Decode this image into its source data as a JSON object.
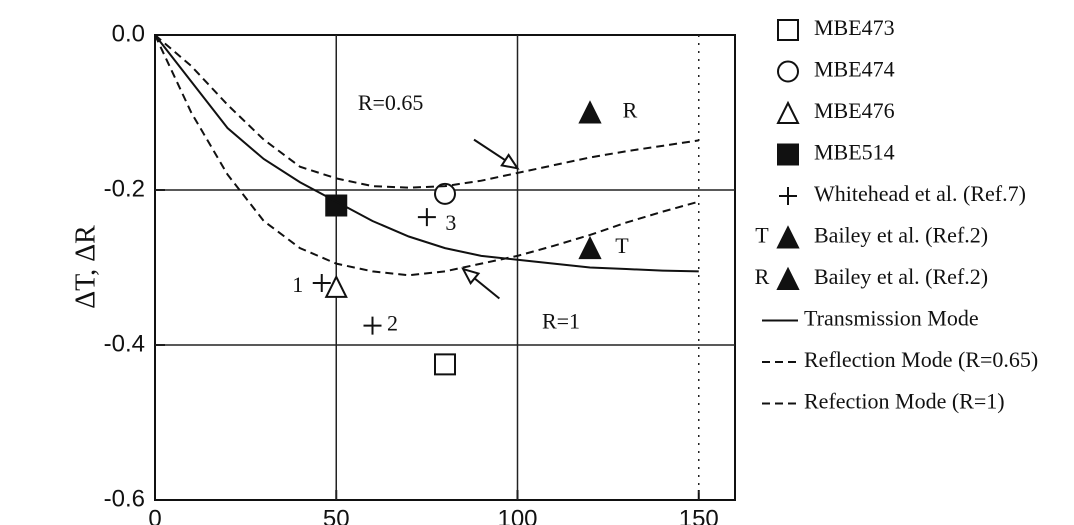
{
  "chart_data": {
    "type": "scatter",
    "y_label": "ΔT, ΔR",
    "xlim": [
      0,
      160
    ],
    "ylim": [
      -0.6,
      0
    ],
    "xticks": [
      0,
      50,
      100,
      150
    ],
    "yticks": [
      {
        "value": 0,
        "label": "0.0"
      },
      -0.2,
      -0.4,
      -0.6
    ],
    "grid": true,
    "series": [
      {
        "name": "MBE473",
        "marker": "square-open",
        "color": "#111",
        "x": [
          80
        ],
        "values": [
          -0.425
        ]
      },
      {
        "name": "MBE474",
        "marker": "circle-open",
        "color": "#111",
        "x": [
          80
        ],
        "values": [
          -0.205
        ]
      },
      {
        "name": "MBE476",
        "marker": "triangle-open",
        "color": "#111",
        "x": [
          50
        ],
        "values": [
          -0.325
        ]
      },
      {
        "name": "MBE514",
        "marker": "square-filled",
        "color": "#111",
        "x": [
          50
        ],
        "values": [
          -0.22
        ]
      },
      {
        "name": "Whitehead et al. (Ref.7)",
        "marker": "plus",
        "color": "#111",
        "x": [
          46,
          60,
          75
        ],
        "values": [
          -0.32,
          -0.375,
          -0.235
        ],
        "point_labels": [
          "1",
          "2",
          "3"
        ]
      },
      {
        "name": "Bailey et al. (Ref.2)",
        "legend_prefix": "T",
        "marker": "triangle-filled",
        "color": "#111",
        "x": [
          120
        ],
        "values": [
          -0.275
        ],
        "point_labels": [
          "T"
        ]
      },
      {
        "name": "Bailey et al. (Ref.2)",
        "legend_prefix": "R",
        "marker": "triangle-filled",
        "color": "#111",
        "x": [
          120
        ],
        "values": [
          -0.1
        ],
        "point_labels": [
          "R"
        ]
      },
      {
        "name": "Transmission Mode",
        "marker": "line",
        "dashed": false,
        "color": "#111",
        "x": [
          0,
          10,
          20,
          30,
          40,
          50,
          60,
          70,
          80,
          90,
          100,
          110,
          120,
          130,
          140,
          150
        ],
        "values": [
          0,
          -0.06,
          -0.12,
          -0.16,
          -0.19,
          -0.215,
          -0.24,
          -0.26,
          -0.275,
          -0.285,
          -0.29,
          -0.295,
          -0.3,
          -0.302,
          -0.304,
          -0.305
        ]
      },
      {
        "name": "Reflection Mode (R=0.65)",
        "marker": "line",
        "dashed": true,
        "color": "#111",
        "x": [
          0,
          10,
          20,
          30,
          40,
          50,
          60,
          70,
          80,
          90,
          100,
          110,
          120,
          130,
          140,
          150
        ],
        "values": [
          0,
          -0.04,
          -0.09,
          -0.135,
          -0.17,
          -0.185,
          -0.195,
          -0.197,
          -0.195,
          -0.188,
          -0.178,
          -0.168,
          -0.158,
          -0.15,
          -0.143,
          -0.136
        ]
      },
      {
        "name": "Refection Mode (R=1)",
        "marker": "line",
        "dashed": true,
        "color": "#111",
        "x": [
          0,
          10,
          20,
          30,
          40,
          50,
          60,
          70,
          80,
          90,
          100,
          110,
          120,
          130,
          140,
          150
        ],
        "values": [
          0,
          -0.1,
          -0.18,
          -0.24,
          -0.275,
          -0.295,
          -0.305,
          -0.31,
          -0.305,
          -0.295,
          -0.285,
          -0.272,
          -0.258,
          -0.242,
          -0.228,
          -0.215
        ]
      }
    ],
    "annotations": [
      "R=0.65",
      "R=1"
    ]
  }
}
